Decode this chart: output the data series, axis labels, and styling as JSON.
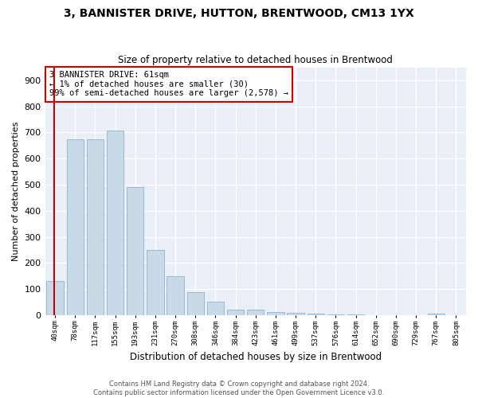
{
  "title": "3, BANNISTER DRIVE, HUTTON, BRENTWOOD, CM13 1YX",
  "subtitle": "Size of property relative to detached houses in Brentwood",
  "xlabel": "Distribution of detached houses by size in Brentwood",
  "ylabel": "Number of detached properties",
  "bin_labels": [
    "40sqm",
    "78sqm",
    "117sqm",
    "155sqm",
    "193sqm",
    "231sqm",
    "270sqm",
    "308sqm",
    "346sqm",
    "384sqm",
    "423sqm",
    "461sqm",
    "499sqm",
    "537sqm",
    "576sqm",
    "614sqm",
    "652sqm",
    "690sqm",
    "729sqm",
    "767sqm",
    "805sqm"
  ],
  "bar_values": [
    130,
    675,
    675,
    707,
    492,
    250,
    148,
    88,
    50,
    22,
    20,
    13,
    10,
    6,
    3,
    2,
    1,
    1,
    1,
    5,
    0
  ],
  "bar_color": "#c9d9e8",
  "bar_edge_color": "#8ab4d0",
  "annotation_box_color": "#cc0000",
  "annotation_line1": "3 BANNISTER DRIVE: 61sqm",
  "annotation_line2": "← 1% of detached houses are smaller (30)",
  "annotation_line3": "99% of semi-detached houses are larger (2,578) →",
  "ylim": [
    0,
    950
  ],
  "yticks": [
    0,
    100,
    200,
    300,
    400,
    500,
    600,
    700,
    800,
    900
  ],
  "background_color": "#eaeff7",
  "grid_color": "#ffffff",
  "footer_line1": "Contains HM Land Registry data © Crown copyright and database right 2024.",
  "footer_line2": "Contains public sector information licensed under the Open Government Licence v3.0."
}
